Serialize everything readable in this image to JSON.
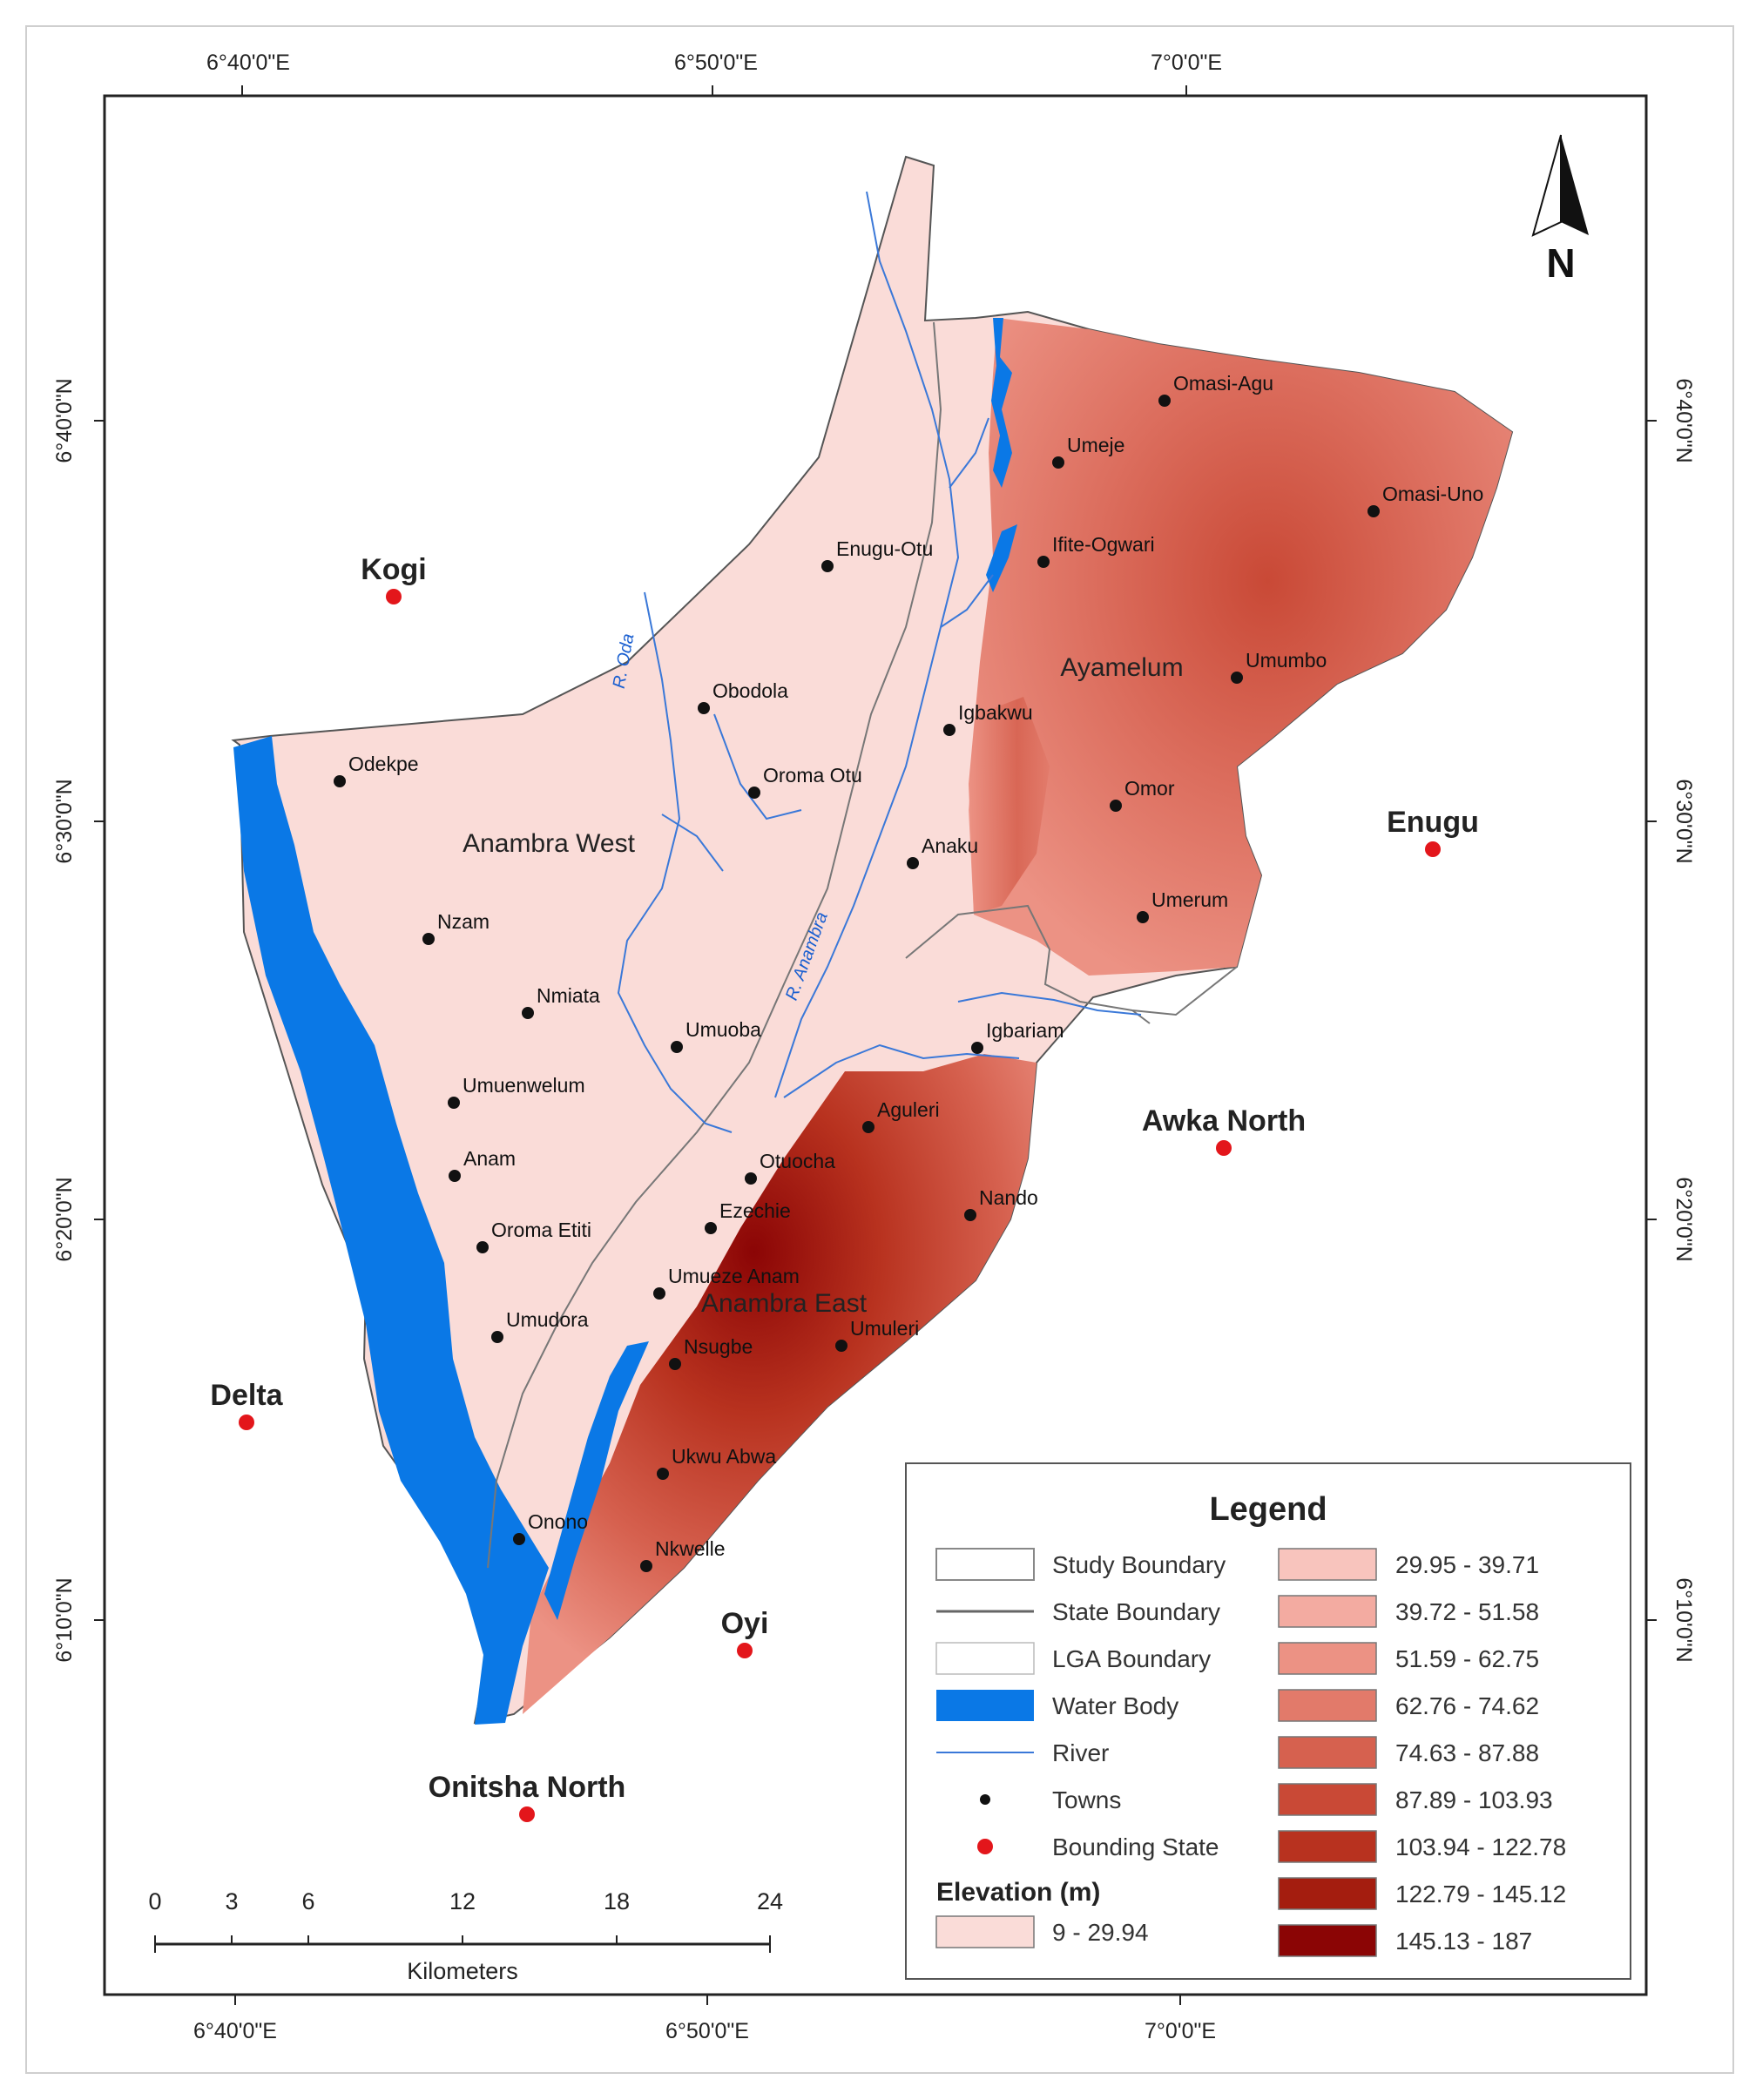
{
  "coordinates": {
    "top": [
      "6°40'0\"E",
      "6°50'0\"E",
      "7°0'0\"E"
    ],
    "bottom": [
      "6°40'0\"E",
      "6°50'0\"E",
      "7°0'0\"E"
    ],
    "left": [
      "6°40'0\"N",
      "6°30'0\"N",
      "6°20'0\"N",
      "6°10'0\"N"
    ],
    "right": [
      "6°40'0\"N",
      "6°30'0\"N",
      "6°20'0\"N",
      "6°10'0\"N"
    ]
  },
  "north_arrow": {
    "label": "N"
  },
  "lgas": [
    "Anambra West",
    "Ayamelum",
    "Anambra East"
  ],
  "rivers": [
    "R. Oda",
    "R. Anambra"
  ],
  "towns": [
    "Omasi-Agu",
    "Umeje",
    "Omasi-Uno",
    "Enugu-Otu",
    "Ifite-Ogwari",
    "Umumbo",
    "Obodola",
    "Igbakwu",
    "Odekpe",
    "Oroma Otu",
    "Omor",
    "Anaku",
    "Umerum",
    "Nzam",
    "Nmiata",
    "Umuoba",
    "Igbariam",
    "Umuenwelum",
    "Aguleri",
    "Anam",
    "Otuocha",
    "Nando",
    "Ezechie",
    "Oroma Etiti",
    "Umueze Anam",
    "Umudora",
    "Umuleri",
    "Nsugbe",
    "Ukwu Abwa",
    "Onono",
    "Nkwelle"
  ],
  "bounding_states": [
    "Kogi",
    "Enugu",
    "Awka North",
    "Delta",
    "Oyi",
    "Onitsha North"
  ],
  "scale_bar": {
    "ticks": [
      "0",
      "3",
      "6",
      "12",
      "18",
      "24"
    ],
    "unit": "Kilometers"
  },
  "legend": {
    "title": "Legend",
    "items": [
      "Study Boundary",
      "State Boundary",
      "LGA Boundary",
      "Water Body",
      "River",
      "Towns",
      "Bounding State"
    ],
    "elevation_title": "Elevation (m)",
    "elevation_classes": [
      {
        "label": "9 - 29.94",
        "color": "#fadcd8"
      },
      {
        "label": "29.95 - 39.71",
        "color": "#f8c4bd"
      },
      {
        "label": "39.72 - 51.58",
        "color": "#f3aba1"
      },
      {
        "label": "51.59 - 62.75",
        "color": "#ec9284"
      },
      {
        "label": "62.76 - 74.62",
        "color": "#e27a6a"
      },
      {
        "label": "74.63 - 87.88",
        "color": "#d6614f"
      },
      {
        "label": "87.89 - 103.93",
        "color": "#c94936"
      },
      {
        "label": "103.94 - 122.78",
        "color": "#b8321f"
      },
      {
        "label": "122.79 - 145.12",
        "color": "#a41d0f"
      },
      {
        "label": "145.13 - 187",
        "color": "#8b0505"
      }
    ]
  },
  "colors": {
    "water": "#0a78e6",
    "river": "#3a78d8",
    "town": "#111111",
    "bounding_state": "#e3161b"
  }
}
